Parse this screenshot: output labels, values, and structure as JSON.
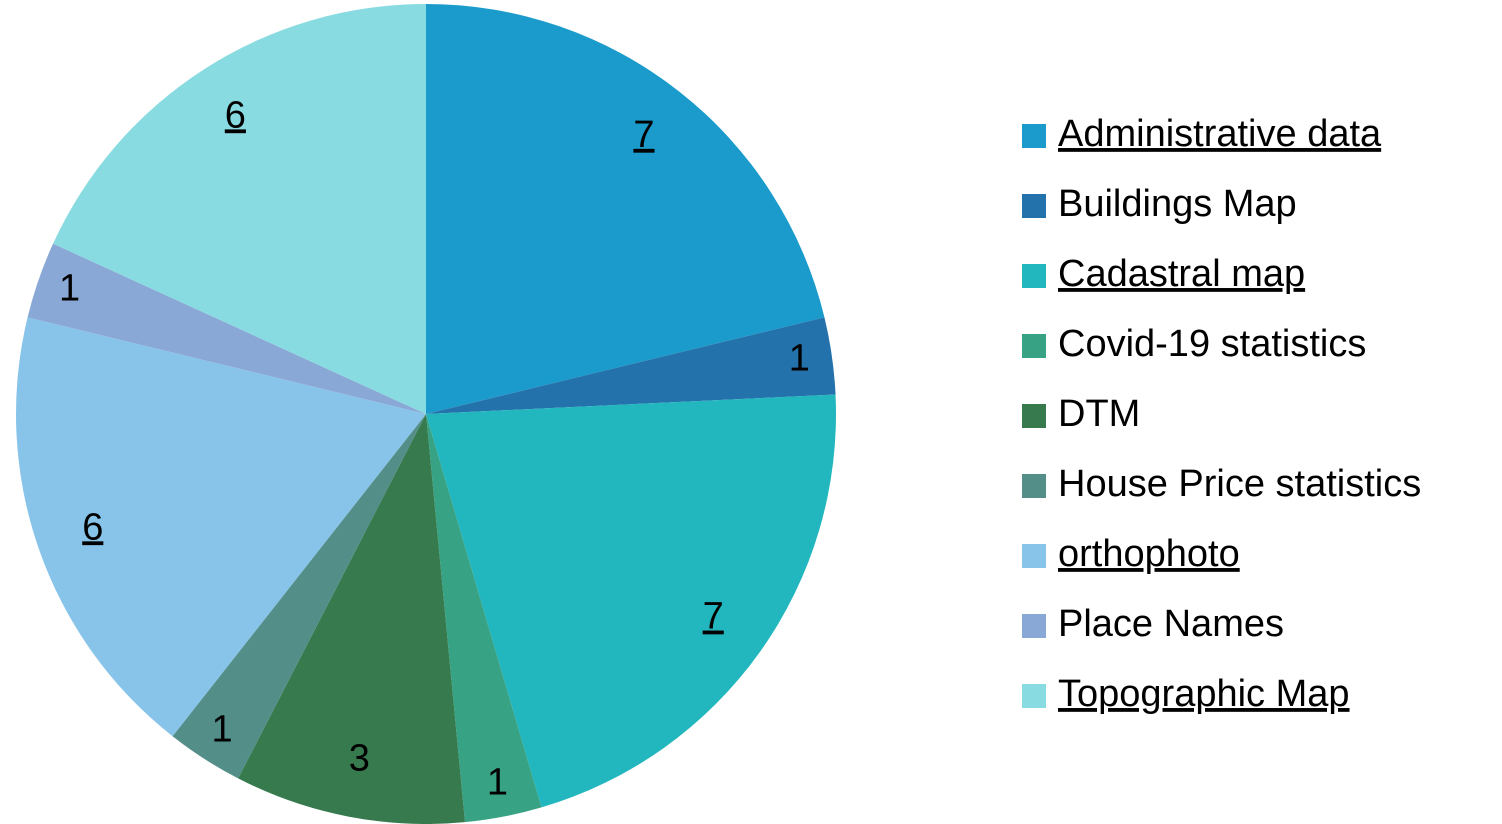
{
  "chart_data": {
    "type": "pie",
    "categories": [
      "Administrative data",
      "Buildings Map",
      "Cadastral map",
      "Covid-19 statistics",
      "DTM",
      "House Price statistics",
      "orthophoto",
      "Place Names",
      "Topographic Map"
    ],
    "values": [
      7,
      1,
      7,
      1,
      3,
      1,
      6,
      1,
      6
    ],
    "colors": [
      "#1a9bcb",
      "#2472ac",
      "#22b7be",
      "#38a384",
      "#367a4d",
      "#538e89",
      "#88c4ea",
      "#8aa8d6",
      "#88dbe0"
    ],
    "underline": [
      true,
      false,
      true,
      false,
      false,
      false,
      true,
      false,
      true
    ],
    "legend": "right"
  }
}
